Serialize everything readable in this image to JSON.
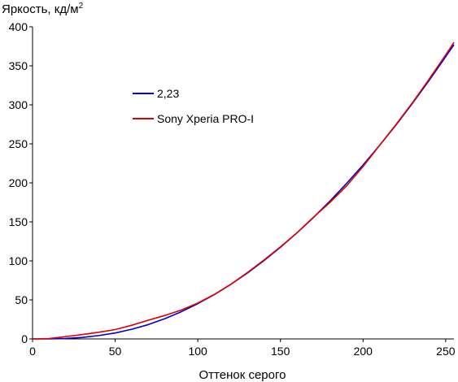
{
  "chart_data": {
    "type": "line",
    "title": "",
    "ylabel": "Яркость, кд/м",
    "ylabel_sup": "2",
    "xlabel": "Оттенок серого",
    "xlim": [
      0,
      255
    ],
    "ylim": [
      0,
      400
    ],
    "xticks": [
      0,
      50,
      100,
      150,
      200,
      250
    ],
    "yticks": [
      0,
      50,
      100,
      150,
      200,
      250,
      300,
      350,
      400
    ],
    "grid": false,
    "legend_position": "upper-left",
    "series": [
      {
        "name": "2,23",
        "color": "#0000cc",
        "x": [
          0,
          10,
          20,
          30,
          40,
          50,
          60,
          70,
          80,
          90,
          100,
          110,
          120,
          130,
          140,
          150,
          160,
          170,
          180,
          190,
          200,
          210,
          220,
          230,
          240,
          250,
          255
        ],
        "y": [
          0,
          0.1,
          0.6,
          1.9,
          4.3,
          7.6,
          12.4,
          18.3,
          25.9,
          34.8,
          45.2,
          56.8,
          70.0,
          84.4,
          100.3,
          117.4,
          135.9,
          155.6,
          176.8,
          199.2,
          222.9,
          248.0,
          274.3,
          302.2,
          331.4,
          361.7,
          377.0
        ]
      },
      {
        "name": "Sony Xperia PRO-I",
        "color": "#dd0000",
        "x": [
          0,
          10,
          20,
          30,
          40,
          50,
          60,
          70,
          80,
          90,
          100,
          110,
          120,
          130,
          140,
          150,
          160,
          170,
          180,
          190,
          200,
          210,
          220,
          230,
          240,
          250,
          255
        ],
        "y": [
          0,
          0.5,
          3,
          5.5,
          8.5,
          12,
          17.5,
          24,
          30,
          37,
          46,
          57,
          70,
          85,
          101,
          118,
          136,
          156,
          175,
          196,
          221,
          248,
          275,
          303,
          333,
          364,
          380
        ]
      }
    ]
  }
}
